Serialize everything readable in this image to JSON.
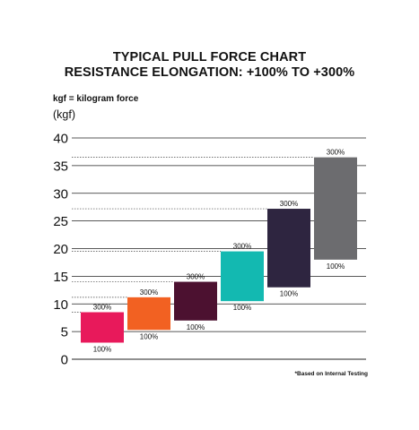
{
  "title_line1": "TYPICAL PULL FORCE CHART",
  "title_line2": "RESISTANCE ELONGATION: +100% TO +300%",
  "unit_note": "kgf = kilogram force",
  "unit_label": "(kgf)",
  "footnote": "*Based on Internal Testing",
  "chart_data": {
    "type": "bar",
    "subtype": "floating-range",
    "title": "TYPICAL PULL FORCE CHART RESISTANCE ELONGATION: +100% TO +300%",
    "ylabel": "(kgf)",
    "ylim": [
      0,
      40
    ],
    "yticks": [
      "0",
      "5",
      "10",
      "15",
      "20",
      "25",
      "30",
      "35",
      "40"
    ],
    "grid": true,
    "low_label": "100%",
    "high_label": "300%",
    "bars": [
      {
        "low": 3.0,
        "high": 8.5,
        "color": "#e8195b"
      },
      {
        "low": 5.3,
        "high": 11.2,
        "color": "#f26122"
      },
      {
        "low": 7.0,
        "high": 14.0,
        "color": "#4c1130"
      },
      {
        "low": 10.5,
        "high": 19.5,
        "color": "#13b9b1"
      },
      {
        "low": 13.0,
        "high": 27.2,
        "color": "#2e2540"
      },
      {
        "low": 18.0,
        "high": 36.5,
        "color": "#6c6c6f"
      }
    ]
  }
}
